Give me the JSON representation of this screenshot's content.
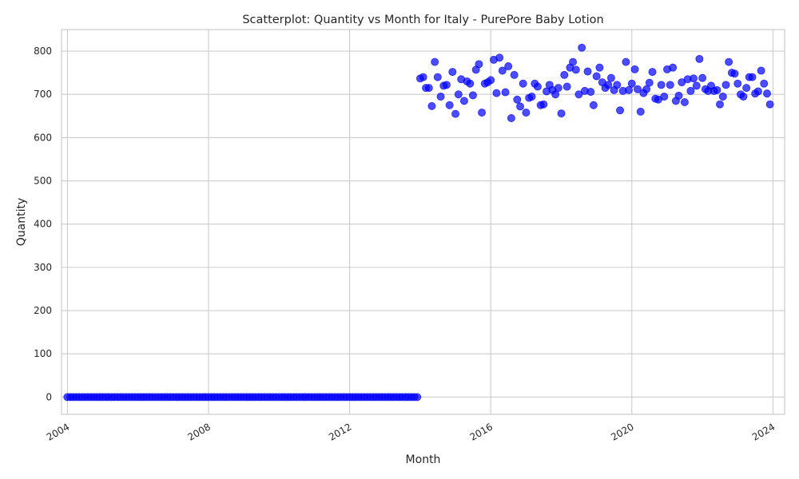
{
  "chart_data": {
    "type": "scatter",
    "title": "Scatterplot: Quantity vs Month for Italy - PurePore Baby Lotion",
    "xlabel": "Month",
    "ylabel": "Quantity",
    "x_axis_type": "date",
    "xlim": [
      "2003-11-01",
      "2024-05-01"
    ],
    "ylim": [
      -40,
      850
    ],
    "x_ticks": [
      "2004-01-01",
      "2008-01-01",
      "2012-01-01",
      "2016-01-01",
      "2020-01-01",
      "2024-01-01"
    ],
    "x_tick_labels": [
      "2004",
      "2008",
      "2012",
      "2016",
      "2020",
      "2024"
    ],
    "y_ticks": [
      0,
      100,
      200,
      300,
      400,
      500,
      600,
      700,
      800
    ],
    "y_tick_labels": [
      "0",
      "100",
      "200",
      "300",
      "400",
      "500",
      "600",
      "700",
      "800"
    ],
    "grid": true,
    "marker_color": "#0000ff",
    "series": [
      {
        "zero_period": {
          "start": "2004-01",
          "end": "2013-12",
          "value": 0
        },
        "points": [
          [
            "2014-01",
            737
          ],
          [
            "2014-02",
            740
          ],
          [
            "2014-03",
            715
          ],
          [
            "2014-04",
            715
          ],
          [
            "2014-05",
            673
          ],
          [
            "2014-06",
            775
          ],
          [
            "2014-07",
            740
          ],
          [
            "2014-08",
            695
          ],
          [
            "2014-09",
            720
          ],
          [
            "2014-10",
            722
          ],
          [
            "2014-11",
            675
          ],
          [
            "2014-12",
            752
          ],
          [
            "2015-01",
            655
          ],
          [
            "2015-02",
            700
          ],
          [
            "2015-03",
            735
          ],
          [
            "2015-04",
            685
          ],
          [
            "2015-05",
            730
          ],
          [
            "2015-06",
            725
          ],
          [
            "2015-07",
            698
          ],
          [
            "2015-08",
            757
          ],
          [
            "2015-09",
            770
          ],
          [
            "2015-10",
            658
          ],
          [
            "2015-11",
            725
          ],
          [
            "2015-12",
            728
          ],
          [
            "2016-01",
            733
          ],
          [
            "2016-02",
            780
          ],
          [
            "2016-03",
            703
          ],
          [
            "2016-04",
            785
          ],
          [
            "2016-05",
            755
          ],
          [
            "2016-06",
            705
          ],
          [
            "2016-07",
            765
          ],
          [
            "2016-08",
            645
          ],
          [
            "2016-09",
            745
          ],
          [
            "2016-10",
            688
          ],
          [
            "2016-11",
            672
          ],
          [
            "2016-12",
            725
          ],
          [
            "2017-01",
            658
          ],
          [
            "2017-02",
            692
          ],
          [
            "2017-03",
            695
          ],
          [
            "2017-04",
            725
          ],
          [
            "2017-05",
            718
          ],
          [
            "2017-06",
            675
          ],
          [
            "2017-07",
            677
          ],
          [
            "2017-08",
            707
          ],
          [
            "2017-09",
            722
          ],
          [
            "2017-10",
            710
          ],
          [
            "2017-11",
            700
          ],
          [
            "2017-12",
            715
          ],
          [
            "2018-01",
            656
          ],
          [
            "2018-02",
            745
          ],
          [
            "2018-03",
            718
          ],
          [
            "2018-04",
            762
          ],
          [
            "2018-05",
            775
          ],
          [
            "2018-06",
            757
          ],
          [
            "2018-07",
            700
          ],
          [
            "2018-08",
            808
          ],
          [
            "2018-09",
            708
          ],
          [
            "2018-10",
            753
          ],
          [
            "2018-11",
            706
          ],
          [
            "2018-12",
            675
          ],
          [
            "2019-01",
            742
          ],
          [
            "2019-02",
            762
          ],
          [
            "2019-03",
            728
          ],
          [
            "2019-04",
            715
          ],
          [
            "2019-05",
            722
          ],
          [
            "2019-06",
            738
          ],
          [
            "2019-07",
            710
          ],
          [
            "2019-08",
            722
          ],
          [
            "2019-09",
            663
          ],
          [
            "2019-10",
            708
          ],
          [
            "2019-11",
            775
          ],
          [
            "2019-12",
            710
          ],
          [
            "2020-01",
            725
          ],
          [
            "2020-02",
            758
          ],
          [
            "2020-03",
            712
          ],
          [
            "2020-04",
            660
          ],
          [
            "2020-05",
            703
          ],
          [
            "2020-06",
            712
          ],
          [
            "2020-07",
            727
          ],
          [
            "2020-08",
            752
          ],
          [
            "2020-09",
            690
          ],
          [
            "2020-10",
            688
          ],
          [
            "2020-11",
            722
          ],
          [
            "2020-12",
            695
          ],
          [
            "2021-01",
            758
          ],
          [
            "2021-02",
            722
          ],
          [
            "2021-03",
            762
          ],
          [
            "2021-04",
            685
          ],
          [
            "2021-05",
            697
          ],
          [
            "2021-06",
            728
          ],
          [
            "2021-07",
            682
          ],
          [
            "2021-08",
            735
          ],
          [
            "2021-09",
            708
          ],
          [
            "2021-10",
            737
          ],
          [
            "2021-11",
            720
          ],
          [
            "2021-12",
            782
          ],
          [
            "2022-01",
            738
          ],
          [
            "2022-02",
            712
          ],
          [
            "2022-03",
            708
          ],
          [
            "2022-04",
            720
          ],
          [
            "2022-05",
            708
          ],
          [
            "2022-06",
            710
          ],
          [
            "2022-07",
            677
          ],
          [
            "2022-08",
            695
          ],
          [
            "2022-09",
            722
          ],
          [
            "2022-10",
            775
          ],
          [
            "2022-11",
            750
          ],
          [
            "2022-12",
            748
          ],
          [
            "2023-01",
            725
          ],
          [
            "2023-02",
            700
          ],
          [
            "2023-03",
            695
          ],
          [
            "2023-04",
            715
          ],
          [
            "2023-05",
            740
          ],
          [
            "2023-06",
            740
          ],
          [
            "2023-07",
            702
          ],
          [
            "2023-08",
            707
          ],
          [
            "2023-09",
            755
          ],
          [
            "2023-10",
            725
          ],
          [
            "2023-11",
            702
          ],
          [
            "2023-12",
            677
          ]
        ]
      }
    ]
  }
}
